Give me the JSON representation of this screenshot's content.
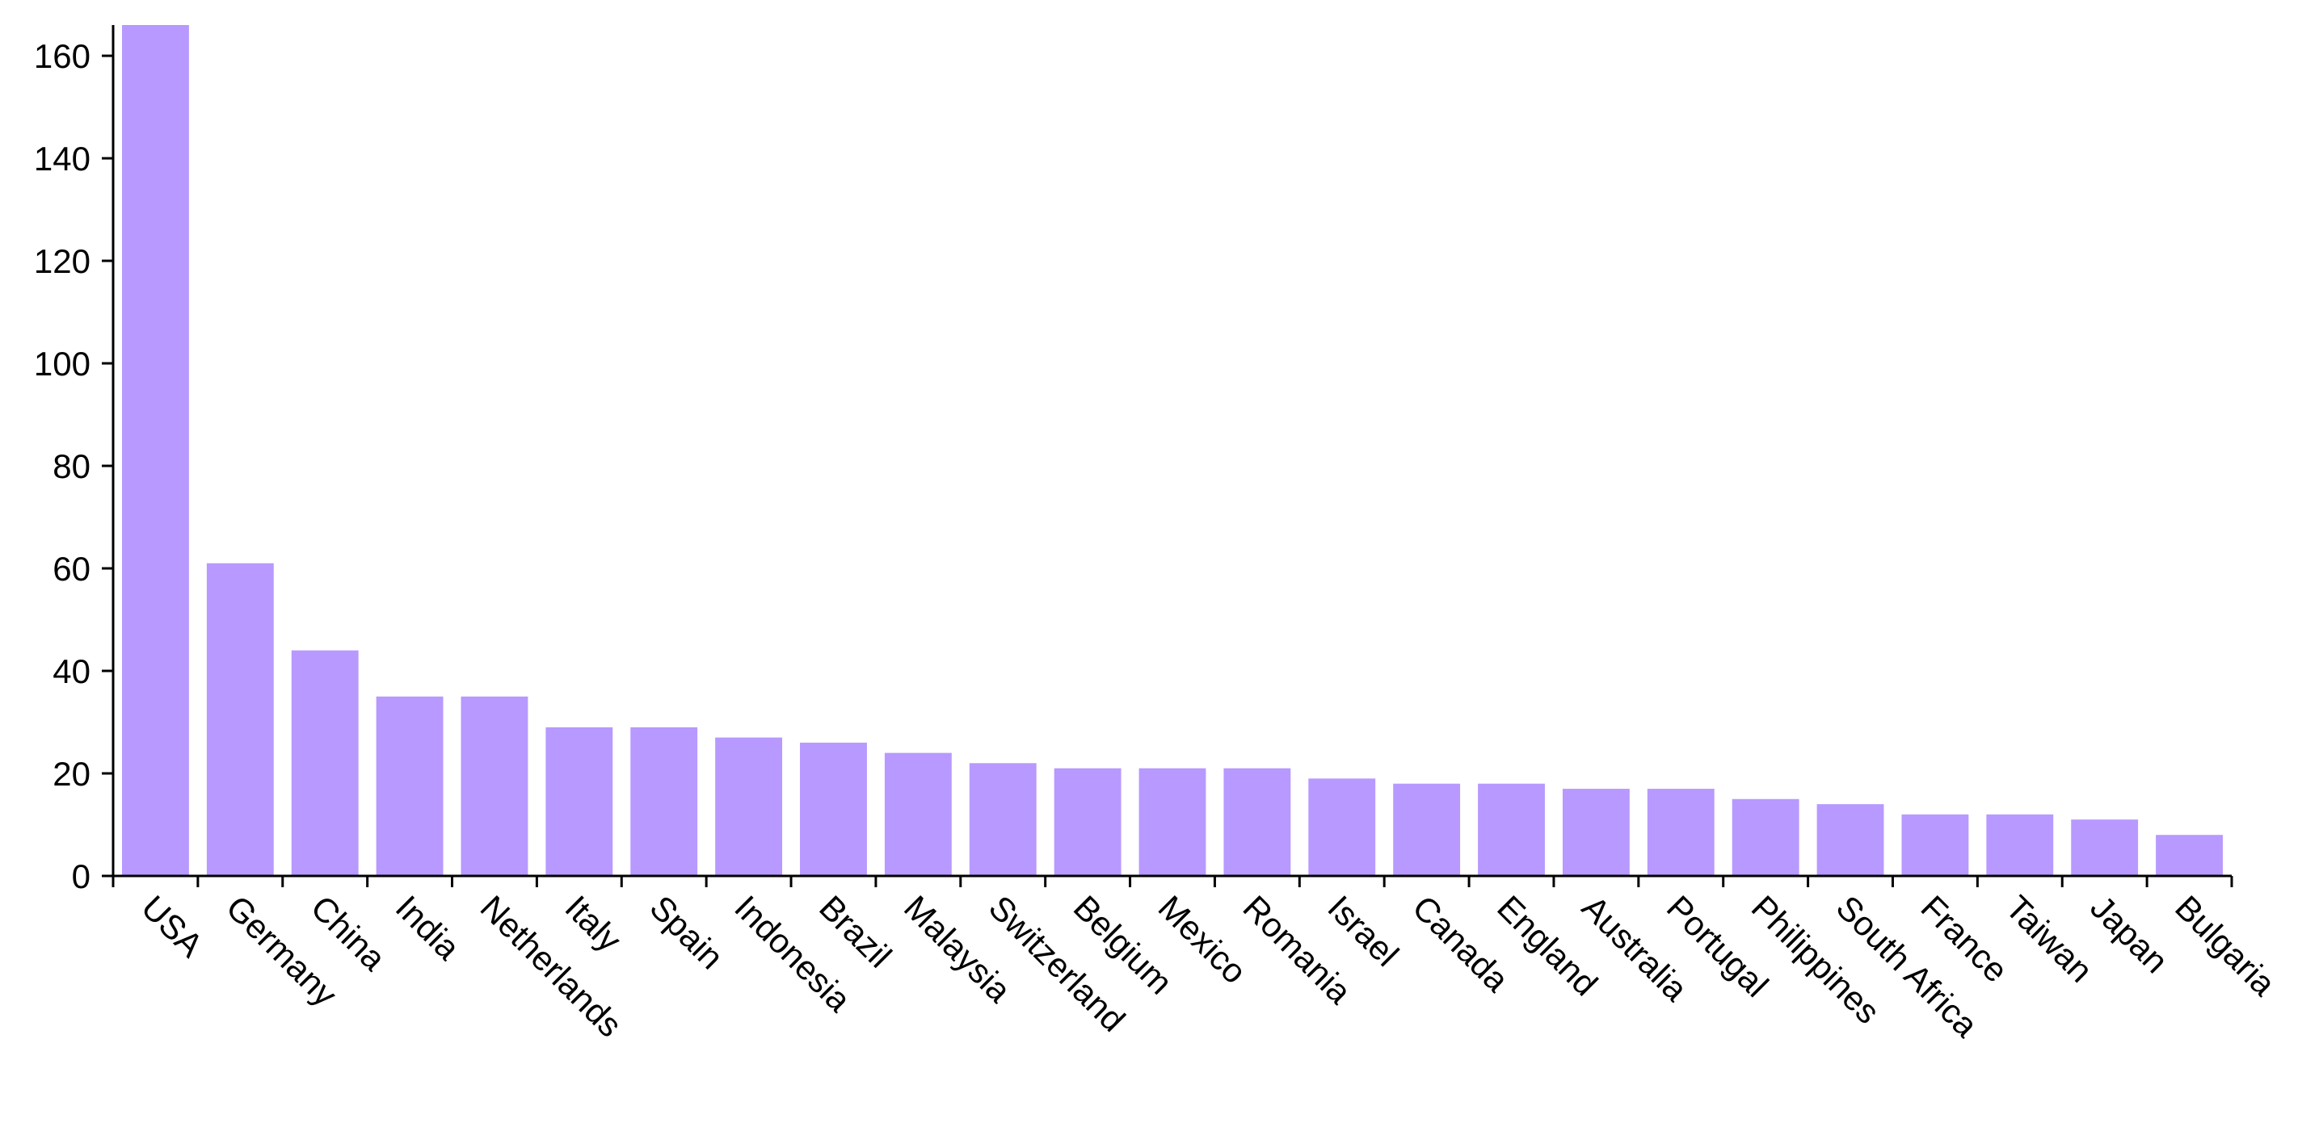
{
  "chart_data": {
    "type": "bar",
    "categories": [
      "USA",
      "Germany",
      "China",
      "India",
      "Netherlands",
      "Italy",
      "Spain",
      "Indonesia",
      "Brazil",
      "Malaysia",
      "Switzerland",
      "Belgium",
      "Mexico",
      "Romania",
      "Israel",
      "Canada",
      "England",
      "Australia",
      "Portugal",
      "Philippines",
      "South Africa",
      "France",
      "Taiwan",
      "Japan",
      "Bulgaria"
    ],
    "values": [
      166,
      61,
      44,
      35,
      35,
      29,
      29,
      27,
      26,
      24,
      22,
      21,
      21,
      21,
      19,
      18,
      18,
      17,
      17,
      15,
      14,
      12,
      12,
      11,
      8
    ],
    "title": "",
    "xlabel": "",
    "ylabel": "",
    "ylim": [
      0,
      166
    ],
    "yticks": [
      0,
      20,
      40,
      60,
      80,
      100,
      120,
      140,
      160
    ],
    "grid": false,
    "legend": "none",
    "bar_color": "#b799ff",
    "axis_color": "#000000"
  }
}
